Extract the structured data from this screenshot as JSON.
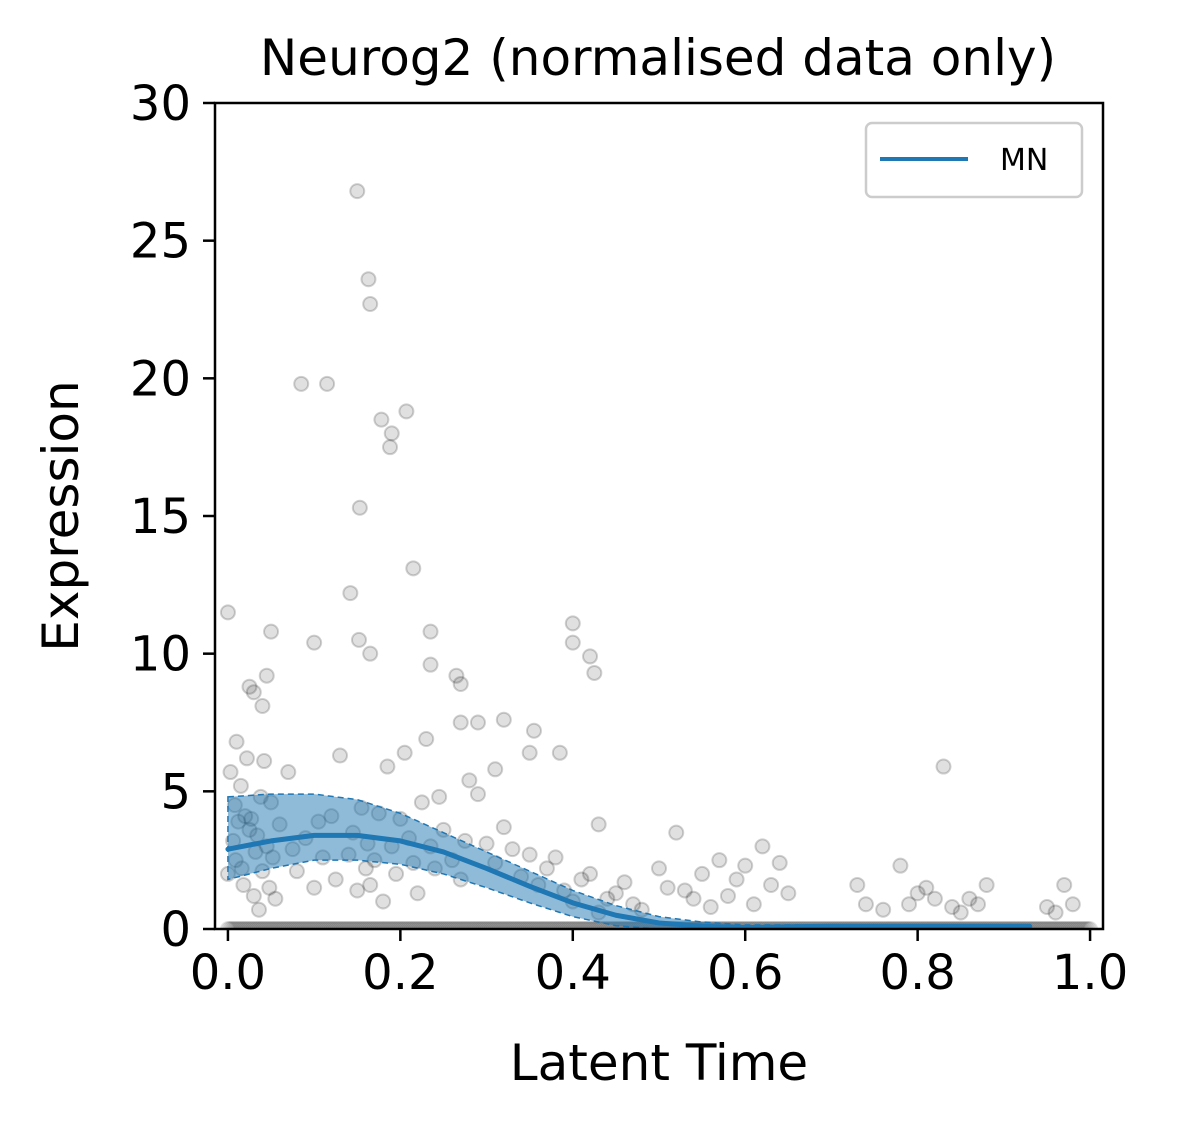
{
  "chart_data": {
    "type": "scatter",
    "title": "Neurog2 (normalised data only)",
    "xlabel": "Latent Time",
    "ylabel": "Expression",
    "xlim": [
      -0.015,
      1.015
    ],
    "ylim": [
      0,
      30
    ],
    "xticks": [
      0.0,
      0.2,
      0.4,
      0.6,
      0.8,
      1.0
    ],
    "xtick_labels": [
      "0.0",
      "0.2",
      "0.4",
      "0.6",
      "0.8",
      "1.0"
    ],
    "yticks": [
      0,
      5,
      10,
      15,
      20,
      25,
      30
    ],
    "ytick_labels": [
      "0",
      "5",
      "10",
      "15",
      "20",
      "25",
      "30"
    ],
    "grid": false,
    "legend": {
      "position": "top-right",
      "entries": [
        {
          "label": "MN",
          "color": "#1f77b4"
        }
      ]
    },
    "colors": {
      "points": "#000000",
      "line": "#1f77b4",
      "band": "#1f77b4"
    },
    "scatter_points": {
      "x": [
        0.0,
        0.003,
        0.006,
        0.008,
        0.009,
        0.01,
        0.012,
        0.015,
        0.016,
        0.018,
        0.02,
        0.022,
        0.025,
        0.027,
        0.03,
        0.032,
        0.034,
        0.036,
        0.038,
        0.04,
        0.042,
        0.045,
        0.048,
        0.05,
        0.052,
        0.055,
        0.06,
        0.07,
        0.075,
        0.08,
        0.09,
        0.1,
        0.105,
        0.11,
        0.12,
        0.125,
        0.13,
        0.14,
        0.145,
        0.15,
        0.155,
        0.16,
        0.162,
        0.165,
        0.17,
        0.175,
        0.18,
        0.185,
        0.19,
        0.195,
        0.2,
        0.205,
        0.21,
        0.215,
        0.22,
        0.225,
        0.23,
        0.235,
        0.24,
        0.245,
        0.25,
        0.26,
        0.27,
        0.275,
        0.28,
        0.29,
        0.3,
        0.31,
        0.32,
        0.33,
        0.34,
        0.35,
        0.36,
        0.37,
        0.38,
        0.39,
        0.4,
        0.41,
        0.42,
        0.43,
        0.44,
        0.45,
        0.46,
        0.47,
        0.48,
        0.5,
        0.51,
        0.52,
        0.53,
        0.54,
        0.55,
        0.56,
        0.57,
        0.58,
        0.59,
        0.6,
        0.61,
        0.62,
        0.63,
        0.64,
        0.65,
        0.73,
        0.74,
        0.76,
        0.78,
        0.79,
        0.8,
        0.81,
        0.82,
        0.83,
        0.84,
        0.85,
        0.86,
        0.87,
        0.88,
        0.95,
        0.96,
        0.97,
        0.98,
        0.15,
        0.163,
        0.165,
        0.178,
        0.188,
        0.19,
        0.085,
        0.115,
        0.215,
        0.207,
        0.153,
        0.142,
        0.152,
        0.1,
        0.165,
        0.235,
        0.235,
        0.265,
        0.32,
        0.355,
        0.4,
        0.4,
        0.42,
        0.425,
        0.35,
        0.385,
        0.43,
        0.27,
        0.27,
        0.29,
        0.31,
        0.025,
        0.04,
        0.03,
        0.045,
        0.0,
        0.05
      ],
      "y": [
        2.0,
        5.7,
        3.2,
        4.5,
        2.5,
        6.8,
        3.9,
        5.2,
        2.2,
        1.6,
        4.1,
        6.2,
        3.6,
        4.0,
        1.2,
        2.8,
        3.4,
        0.7,
        4.8,
        2.1,
        6.1,
        3.0,
        1.5,
        4.6,
        2.6,
        1.1,
        3.8,
        5.7,
        2.9,
        2.1,
        3.3,
        1.5,
        3.9,
        2.6,
        4.1,
        1.8,
        6.3,
        2.7,
        3.5,
        1.4,
        4.4,
        2.2,
        3.1,
        1.6,
        2.5,
        4.2,
        1.0,
        5.9,
        3.0,
        2.0,
        4.0,
        6.4,
        3.3,
        2.4,
        1.3,
        4.6,
        6.9,
        3.0,
        2.2,
        4.8,
        3.6,
        2.5,
        1.8,
        3.2,
        5.4,
        4.9,
        3.1,
        2.4,
        3.7,
        2.9,
        1.9,
        2.7,
        1.6,
        2.2,
        2.6,
        1.4,
        1.0,
        1.8,
        2.0,
        0.6,
        1.1,
        1.3,
        1.7,
        0.9,
        0.7,
        2.2,
        1.5,
        3.5,
        1.4,
        1.1,
        2.0,
        0.8,
        2.5,
        1.2,
        1.8,
        2.3,
        0.9,
        3.0,
        1.6,
        2.4,
        1.3,
        1.6,
        0.9,
        0.7,
        2.3,
        0.9,
        1.3,
        1.5,
        1.1,
        5.9,
        0.8,
        0.6,
        1.1,
        0.9,
        1.6,
        0.8,
        0.6,
        1.6,
        0.9,
        26.8,
        23.6,
        22.7,
        18.5,
        17.5,
        18.0,
        19.8,
        19.8,
        13.1,
        18.8,
        15.3,
        12.2,
        10.5,
        10.4,
        10.0,
        10.8,
        9.6,
        9.2,
        7.6,
        7.2,
        11.1,
        10.4,
        9.9,
        9.3,
        6.4,
        6.4,
        3.8,
        7.5,
        8.9,
        7.5,
        5.8,
        8.8,
        8.1,
        8.6,
        9.2,
        11.5,
        10.8
      ],
      "zero_band_density": "many points at 0"
    },
    "series": [
      {
        "name": "MN",
        "x": [
          0.0,
          0.05,
          0.1,
          0.15,
          0.2,
          0.25,
          0.3,
          0.35,
          0.4,
          0.45,
          0.5,
          0.55,
          0.6,
          0.65,
          0.7,
          0.75,
          0.8,
          0.85,
          0.9,
          0.93
        ],
        "y": [
          2.9,
          3.2,
          3.4,
          3.4,
          3.2,
          2.8,
          2.2,
          1.55,
          0.95,
          0.5,
          0.22,
          0.1,
          0.05,
          0.08,
          0.1,
          0.1,
          0.1,
          0.1,
          0.1,
          0.1
        ],
        "lower": [
          1.8,
          2.2,
          2.5,
          2.5,
          2.35,
          2.0,
          1.5,
          0.95,
          0.45,
          0.12,
          0.0,
          0.0,
          0.0,
          0.0,
          0.0,
          0.0,
          0.0,
          0.0,
          0.0,
          0.0
        ],
        "upper": [
          4.8,
          4.9,
          4.9,
          4.7,
          4.2,
          3.5,
          2.8,
          2.1,
          1.4,
          0.85,
          0.45,
          0.25,
          0.15,
          0.15,
          0.15,
          0.15,
          0.15,
          0.15,
          0.15,
          0.15
        ]
      }
    ]
  }
}
